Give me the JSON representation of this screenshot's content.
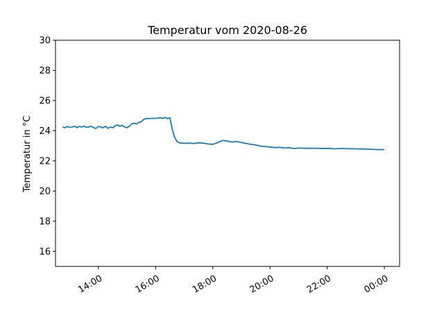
{
  "chart_data": {
    "type": "line",
    "title": "Temperatur vom 2020-08-26",
    "xlabel": "",
    "ylabel": "Temperatur in °C",
    "ylim": [
      15,
      30
    ],
    "xlim": [
      "2020-08-26 12:30",
      "2020-08-27 00:32"
    ],
    "yticks": [
      16,
      18,
      20,
      22,
      24,
      26,
      28,
      30
    ],
    "xticks": [
      {
        "t": "2020-08-26 14:00",
        "label": "14:00"
      },
      {
        "t": "2020-08-26 16:00",
        "label": "16:00"
      },
      {
        "t": "2020-08-26 18:00",
        "label": "18:00"
      },
      {
        "t": "2020-08-26 20:00",
        "label": "20:00"
      },
      {
        "t": "2020-08-26 22:00",
        "label": "22:00"
      },
      {
        "t": "2020-08-27 00:00",
        "label": "00:00"
      }
    ],
    "grid": false,
    "color": "#1f77b4",
    "series": [
      {
        "x": [
          "2020-08-26 12:45",
          "2020-08-26 12:50",
          "2020-08-26 12:55",
          "2020-08-26 13:00",
          "2020-08-26 13:05",
          "2020-08-26 13:10",
          "2020-08-26 13:15",
          "2020-08-26 13:20",
          "2020-08-26 13:25",
          "2020-08-26 13:30",
          "2020-08-26 13:35",
          "2020-08-26 13:40",
          "2020-08-26 13:45",
          "2020-08-26 13:50",
          "2020-08-26 13:55",
          "2020-08-26 14:00",
          "2020-08-26 14:05",
          "2020-08-26 14:10",
          "2020-08-26 14:15",
          "2020-08-26 14:20",
          "2020-08-26 14:25",
          "2020-08-26 14:30",
          "2020-08-26 14:35",
          "2020-08-26 14:40",
          "2020-08-26 14:45",
          "2020-08-26 14:50",
          "2020-08-26 14:55",
          "2020-08-26 15:00",
          "2020-08-26 15:05",
          "2020-08-26 15:10",
          "2020-08-26 15:15",
          "2020-08-26 15:20",
          "2020-08-26 15:25",
          "2020-08-26 15:30",
          "2020-08-26 15:35",
          "2020-08-26 15:40",
          "2020-08-26 15:45",
          "2020-08-26 15:50",
          "2020-08-26 16:00",
          "2020-08-26 16:10",
          "2020-08-26 16:15",
          "2020-08-26 16:20",
          "2020-08-26 16:25",
          "2020-08-26 16:30",
          "2020-08-26 16:35",
          "2020-08-26 16:40",
          "2020-08-26 16:45",
          "2020-08-26 16:50",
          "2020-08-26 17:00",
          "2020-08-26 17:10",
          "2020-08-26 17:20",
          "2020-08-26 17:30",
          "2020-08-26 17:40",
          "2020-08-26 17:50",
          "2020-08-26 18:00",
          "2020-08-26 18:10",
          "2020-08-26 18:20",
          "2020-08-26 18:30",
          "2020-08-26 18:40",
          "2020-08-26 18:50",
          "2020-08-26 19:00",
          "2020-08-26 19:10",
          "2020-08-26 19:20",
          "2020-08-26 19:30",
          "2020-08-26 19:40",
          "2020-08-26 19:50",
          "2020-08-26 20:00",
          "2020-08-26 20:10",
          "2020-08-26 20:20",
          "2020-08-26 20:30",
          "2020-08-26 20:40",
          "2020-08-26 20:50",
          "2020-08-26 21:00",
          "2020-08-26 21:15",
          "2020-08-26 21:30",
          "2020-08-26 21:45",
          "2020-08-26 22:00",
          "2020-08-26 22:15",
          "2020-08-26 22:30",
          "2020-08-26 22:45",
          "2020-08-26 23:00",
          "2020-08-26 23:15",
          "2020-08-26 23:30",
          "2020-08-26 23:45",
          "2020-08-27 00:00"
        ],
        "y": [
          24.25,
          24.2,
          24.28,
          24.22,
          24.25,
          24.3,
          24.2,
          24.28,
          24.25,
          24.3,
          24.22,
          24.25,
          24.3,
          24.2,
          24.15,
          24.28,
          24.25,
          24.2,
          24.3,
          24.15,
          24.25,
          24.2,
          24.32,
          24.38,
          24.3,
          24.35,
          24.25,
          24.2,
          24.3,
          24.45,
          24.5,
          24.45,
          24.55,
          24.6,
          24.75,
          24.8,
          24.8,
          24.82,
          24.82,
          24.85,
          24.82,
          24.88,
          24.8,
          24.85,
          24.1,
          23.55,
          23.28,
          23.2,
          23.16,
          23.18,
          23.15,
          23.2,
          23.17,
          23.12,
          23.1,
          23.2,
          23.35,
          23.32,
          23.25,
          23.28,
          23.22,
          23.15,
          23.1,
          23.05,
          22.98,
          22.95,
          22.92,
          22.88,
          22.9,
          22.85,
          22.87,
          22.82,
          22.85,
          22.83,
          22.84,
          22.82,
          22.83,
          22.8,
          22.82,
          22.81,
          22.8,
          22.79,
          22.77,
          22.75,
          22.75
        ]
      }
    ]
  }
}
